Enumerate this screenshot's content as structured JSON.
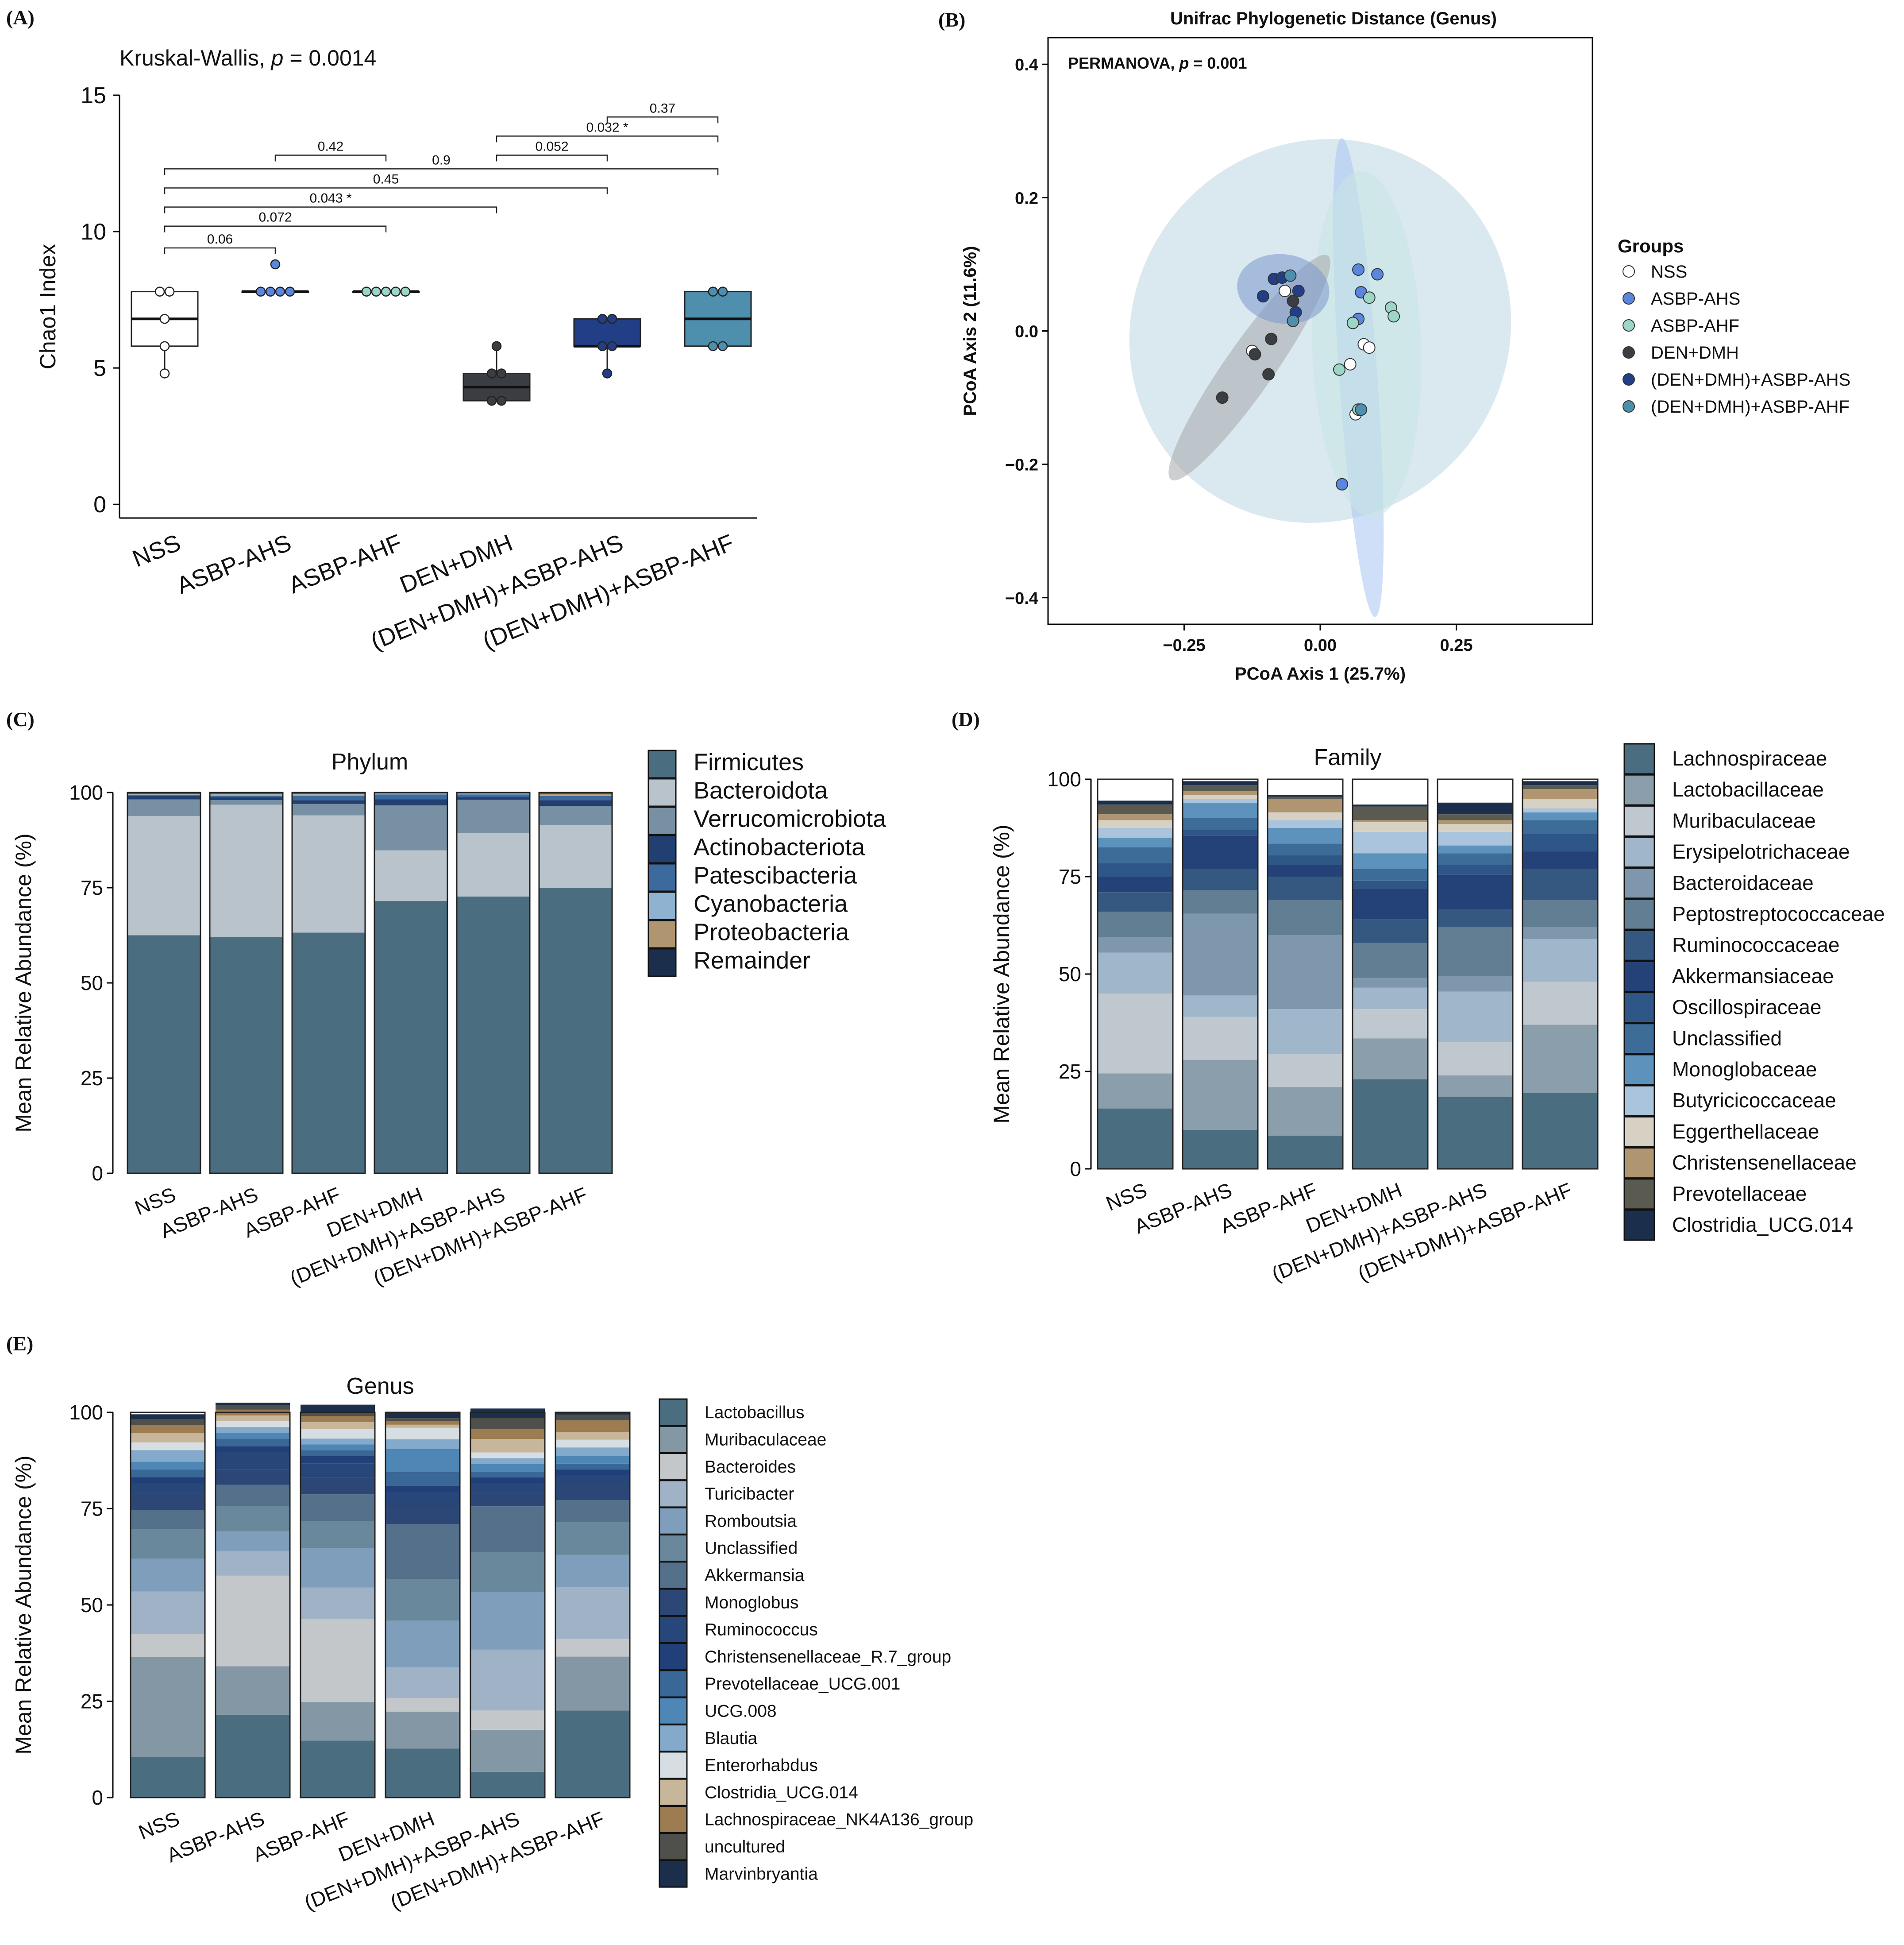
{
  "colors": {
    "Firmicutes": "#4a6d80",
    "Bacteroidota": "#b9c3cb",
    "Verrucomicrobiota": "#7890a3",
    "Actinobacteriota": "#213f70",
    "Patescibacteria": "#3d6a9c",
    "Cyanobacteria": "#8fb2d0",
    "Proteobacteria": "#b09670",
    "Remainder": "#1b2f4c",
    "NSS": "#ffffff",
    "ASBP-AHS": "#5b86dd",
    "ASBP-AHF": "#9cd6c7",
    "DEN+DMH": "#3a3d42",
    "(DEN+DMH)+ASBP-AHS": "#223e86",
    "(DEN+DMH)+ASBP-AHF": "#4f8fae"
  },
  "panels": {
    "A": {
      "letter": "(A)",
      "test_label": "Kruskal-Wallis, ",
      "p_symbol": "p",
      "p_value": " = 0.0014"
    },
    "B": {
      "letter": "(B)"
    },
    "C": {
      "letter": "(C)"
    },
    "D": {
      "letter": "(D)"
    },
    "E": {
      "letter": "(E)"
    }
  },
  "chart_data": [
    {
      "id": "A",
      "type": "box",
      "ylabel": "Chao1 Index",
      "ylim": [
        -0.5,
        15
      ],
      "yticks": [
        0,
        5,
        10,
        15
      ],
      "categories": [
        "NSS",
        "ASBP-AHS",
        "ASBP-AHF",
        "DEN+DMH",
        "(DEN+DMH)+ASBP-AHS",
        "(DEN+DMH)+ASBP-AHF"
      ],
      "boxes": [
        {
          "group": "NSS",
          "q1": 5.8,
          "median": 6.8,
          "q3": 7.8,
          "whisker_low": 4.8,
          "whisker_high": 7.8,
          "points": [
            4.8,
            5.8,
            6.8,
            7.8,
            7.8
          ]
        },
        {
          "group": "ASBP-AHS",
          "q1": 7.8,
          "median": 7.8,
          "q3": 7.8,
          "whisker_low": 7.8,
          "whisker_high": 7.8,
          "points": [
            7.8,
            7.8,
            7.8,
            7.8,
            8.8
          ]
        },
        {
          "group": "ASBP-AHF",
          "q1": 7.8,
          "median": 7.8,
          "q3": 7.8,
          "whisker_low": 7.8,
          "whisker_high": 7.8,
          "points": [
            7.8,
            7.8,
            7.8,
            7.8,
            7.8
          ]
        },
        {
          "group": "DEN+DMH",
          "q1": 3.8,
          "median": 4.3,
          "q3": 4.8,
          "whisker_low": 3.8,
          "whisker_high": 5.8,
          "points": [
            3.8,
            3.8,
            4.8,
            4.8,
            5.8
          ]
        },
        {
          "group": "(DEN+DMH)+ASBP-AHS",
          "q1": 5.8,
          "median": 5.8,
          "q3": 6.8,
          "whisker_low": 4.8,
          "whisker_high": 6.8,
          "points": [
            4.8,
            5.8,
            5.8,
            6.8,
            6.8
          ]
        },
        {
          "group": "(DEN+DMH)+ASBP-AHF",
          "q1": 5.8,
          "median": 6.8,
          "q3": 7.8,
          "whisker_low": 5.8,
          "whisker_high": 7.8,
          "points": [
            5.8,
            5.8,
            7.8,
            7.8
          ]
        }
      ],
      "comparisons": [
        {
          "from": 0,
          "to": 1,
          "label": "0.06",
          "y": 9.4
        },
        {
          "from": 0,
          "to": 2,
          "label": "0.072",
          "y": 10.2
        },
        {
          "from": 0,
          "to": 3,
          "label": "0.043 *",
          "y": 10.9
        },
        {
          "from": 0,
          "to": 4,
          "label": "0.45",
          "y": 11.6
        },
        {
          "from": 0,
          "to": 5,
          "label": "0.9",
          "y": 12.3
        },
        {
          "from": 1,
          "to": 2,
          "label": "0.42",
          "y": 12.8
        },
        {
          "from": 3,
          "to": 4,
          "label": "0.052",
          "y": 12.8
        },
        {
          "from": 3,
          "to": 5,
          "label": "0.032 *",
          "y": 13.5
        },
        {
          "from": 4,
          "to": 5,
          "label": "0.37",
          "y": 14.2
        }
      ]
    },
    {
      "id": "B",
      "type": "scatter",
      "title": "Unifrac Phylogenetic Distance (Genus)",
      "annotation": "PERMANOVA, ",
      "annotation_p": "p",
      "annotation_value": " = 0.001",
      "xlabel": "PCoA Axis 1 (25.7%)",
      "ylabel": "PCoA Axis 2 (11.6%)",
      "xlim": [
        -0.5,
        0.5
      ],
      "ylim": [
        -0.44,
        0.44
      ],
      "xticks": [
        -0.25,
        0.0,
        0.25
      ],
      "xtick_labels": [
        "−0.25",
        "0.00",
        "0.25"
      ],
      "yticks": [
        -0.4,
        -0.2,
        0.0,
        0.2,
        0.4
      ],
      "ytick_labels": [
        "−0.4",
        "−0.2",
        "0.0",
        "0.2",
        "0.4"
      ],
      "legend_title": "Groups",
      "groups": [
        "NSS",
        "ASBP-AHS",
        "ASBP-AHF",
        "DEN+DMH",
        "(DEN+DMH)+ASBP-AHS",
        "(DEN+DMH)+ASBP-AHF"
      ],
      "points": [
        {
          "group": "NSS",
          "x": -0.065,
          "y": 0.06
        },
        {
          "group": "NSS",
          "x": -0.125,
          "y": -0.03
        },
        {
          "group": "NSS",
          "x": 0.08,
          "y": -0.02
        },
        {
          "group": "NSS",
          "x": 0.09,
          "y": -0.025
        },
        {
          "group": "NSS",
          "x": 0.055,
          "y": -0.05
        },
        {
          "group": "NSS",
          "x": 0.065,
          "y": -0.125
        },
        {
          "group": "ASBP-AHS",
          "x": 0.07,
          "y": 0.092
        },
        {
          "group": "ASBP-AHS",
          "x": 0.105,
          "y": 0.085
        },
        {
          "group": "ASBP-AHS",
          "x": 0.075,
          "y": 0.058
        },
        {
          "group": "ASBP-AHS",
          "x": 0.07,
          "y": 0.018
        },
        {
          "group": "ASBP-AHS",
          "x": 0.04,
          "y": -0.23
        },
        {
          "group": "ASBP-AHF",
          "x": 0.09,
          "y": 0.05
        },
        {
          "group": "ASBP-AHF",
          "x": 0.13,
          "y": 0.035
        },
        {
          "group": "ASBP-AHF",
          "x": 0.135,
          "y": 0.022
        },
        {
          "group": "ASBP-AHF",
          "x": 0.06,
          "y": 0.012
        },
        {
          "group": "ASBP-AHF",
          "x": 0.035,
          "y": -0.058
        },
        {
          "group": "ASBP-AHF",
          "x": 0.07,
          "y": -0.118
        },
        {
          "group": "DEN+DMH",
          "x": -0.05,
          "y": 0.045
        },
        {
          "group": "DEN+DMH",
          "x": -0.09,
          "y": -0.012
        },
        {
          "group": "DEN+DMH",
          "x": -0.12,
          "y": -0.035
        },
        {
          "group": "DEN+DMH",
          "x": -0.095,
          "y": -0.065
        },
        {
          "group": "DEN+DMH",
          "x": -0.18,
          "y": -0.1
        },
        {
          "group": "(DEN+DMH)+ASBP-AHS",
          "x": -0.085,
          "y": 0.078
        },
        {
          "group": "(DEN+DMH)+ASBP-AHS",
          "x": -0.07,
          "y": 0.08
        },
        {
          "group": "(DEN+DMH)+ASBP-AHS",
          "x": -0.105,
          "y": 0.052
        },
        {
          "group": "(DEN+DMH)+ASBP-AHS",
          "x": -0.04,
          "y": 0.06
        },
        {
          "group": "(DEN+DMH)+ASBP-AHS",
          "x": -0.045,
          "y": 0.028
        },
        {
          "group": "(DEN+DMH)+ASBP-AHF",
          "x": -0.055,
          "y": 0.083
        },
        {
          "group": "(DEN+DMH)+ASBP-AHF",
          "x": -0.05,
          "y": 0.015
        },
        {
          "group": "(DEN+DMH)+ASBP-AHF",
          "x": 0.075,
          "y": -0.118
        }
      ],
      "ellipses": [
        {
          "group": "NSS",
          "cx": 0.0,
          "cy": 0.0,
          "rx": 0.36,
          "ry": 0.28,
          "angle_deg": -48
        },
        {
          "group": "ASBP-AHS",
          "cx": 0.07,
          "cy": -0.07,
          "rx": 0.035,
          "ry": 0.36,
          "angle_deg": -4
        },
        {
          "group": "ASBP-AHF",
          "cx": 0.085,
          "cy": -0.02,
          "rx": 0.1,
          "ry": 0.26,
          "angle_deg": -2
        },
        {
          "group": "DEN+DMH",
          "cx": -0.13,
          "cy": -0.055,
          "rx": 0.045,
          "ry": 0.205,
          "angle_deg": 35
        },
        {
          "group": "(DEN+DMH)+ASBP-AHS",
          "cx": -0.068,
          "cy": 0.063,
          "rx": 0.085,
          "ry": 0.052,
          "angle_deg": 8
        }
      ]
    },
    {
      "id": "C",
      "type": "stacked_bar",
      "title": "Phylum",
      "ylabel": "Mean Relative Abundance (%)",
      "ylim": [
        0,
        100
      ],
      "yticks": [
        0,
        25,
        50,
        75,
        100
      ],
      "categories": [
        "NSS",
        "ASBP-AHS",
        "ASBP-AHF",
        "DEN+DMH",
        "(DEN+DMH)+ASBP-AHS",
        "(DEN+DMH)+ASBP-AHF"
      ],
      "series": [
        {
          "name": "Firmicutes",
          "values": [
            62.5,
            62,
            63.2,
            71.5,
            72.7,
            75
          ]
        },
        {
          "name": "Bacteroidota",
          "values": [
            31.3,
            34.8,
            30.8,
            13.3,
            16.6,
            16.4
          ]
        },
        {
          "name": "Verrucomicrobiota",
          "values": [
            4.4,
            1.2,
            3,
            11.8,
            8.8,
            5.1
          ]
        },
        {
          "name": "Actinobacteriota",
          "values": [
            1,
            0.8,
            1,
            1.6,
            0.7,
            1.5
          ]
        },
        {
          "name": "Patescibacteria",
          "values": [
            0.2,
            0.4,
            1.2,
            1.3,
            0.7,
            1.1
          ]
        },
        {
          "name": "Cyanobacteria",
          "values": [
            0.1,
            0.3,
            0.3,
            0.1,
            0.1,
            0.3
          ]
        },
        {
          "name": "Proteobacteria",
          "values": [
            0.2,
            0.2,
            0.2,
            0.2,
            0.2,
            0.3
          ]
        },
        {
          "name": "Remainder",
          "values": [
            0.3,
            0.3,
            0.3,
            0.2,
            0.2,
            0.3
          ]
        }
      ]
    },
    {
      "id": "D",
      "type": "stacked_bar",
      "title": "Family",
      "ylabel": "Mean Relative Abundance (%)",
      "ylim": [
        0,
        100
      ],
      "yticks": [
        0,
        25,
        50,
        75,
        100
      ],
      "categories": [
        "NSS",
        "ASBP-AHS",
        "ASBP-AHF",
        "DEN+DMH",
        "(DEN+DMH)+ASBP-AHS",
        "(DEN+DMH)+ASBP-AHF"
      ],
      "series": [
        {
          "name": "Lachnospiraceae",
          "values": [
            15.5,
            10,
            8.5,
            23,
            18.5,
            19.5
          ]
        },
        {
          "name": "Lactobacillaceae",
          "values": [
            9,
            18,
            12.5,
            10.5,
            5.5,
            17.5
          ]
        },
        {
          "name": "Muribaculaceae",
          "values": [
            20.5,
            11,
            8.5,
            7.5,
            8.5,
            11
          ]
        },
        {
          "name": "Erysipelotrichaceae",
          "values": [
            10.5,
            5.5,
            11.5,
            5.5,
            13,
            11
          ]
        },
        {
          "name": "Bacteroidaceae",
          "values": [
            4,
            21,
            19,
            2.5,
            4,
            3
          ]
        },
        {
          "name": "Peptostreptococcaceae",
          "values": [
            6.5,
            6,
            9,
            9,
            12.5,
            7
          ]
        },
        {
          "name": "Ruminococcaceae",
          "values": [
            5,
            5.5,
            6,
            6,
            4.5,
            8
          ]
        },
        {
          "name": "Akkermansiaceae",
          "values": [
            4,
            8.5,
            3,
            8,
            9,
            4.5
          ]
        },
        {
          "name": "Oscillospiraceae",
          "values": [
            3.5,
            1.5,
            2.5,
            2,
            2.5,
            4.5
          ]
        },
        {
          "name": "Unclassified",
          "values": [
            4,
            3,
            3,
            3,
            3,
            3.5
          ]
        },
        {
          "name": "Monoglobaceae",
          "values": [
            2.5,
            4,
            4,
            4,
            2,
            2
          ]
        },
        {
          "name": "Butyricicoccaceae",
          "values": [
            2.5,
            1,
            2,
            5.5,
            3.5,
            1
          ]
        },
        {
          "name": "Eggerthellaceae",
          "values": [
            2,
            1,
            2,
            2.5,
            2,
            2.5
          ]
        },
        {
          "name": "Christensenellaceae",
          "values": [
            1.5,
            1,
            3.5,
            0.5,
            1,
            2.5
          ]
        },
        {
          "name": "Prevotellaceae",
          "values": [
            2.5,
            1.5,
            0.5,
            3.5,
            1.5,
            1
          ]
        },
        {
          "name": "Clostridia_UCG.014",
          "values": [
            1,
            1,
            0.5,
            0.5,
            3,
            1
          ]
        }
      ]
    },
    {
      "id": "E",
      "type": "stacked_bar",
      "title": "Genus",
      "ylabel": "Mean Relative Abundance (%)",
      "ylim": [
        0,
        100
      ],
      "yticks": [
        0,
        25,
        50,
        75,
        100
      ],
      "categories": [
        "NSS",
        "ASBP-AHS",
        "ASBP-AHF",
        "DEN+DMH",
        "(DEN+DMH)+ASBP-AHS",
        "(DEN+DMH)+ASBP-AHF"
      ],
      "series": [
        {
          "name": "Lactobacillus",
          "values": [
            10.5,
            21.5,
            14.8,
            12.7,
            6.7,
            22.6
          ]
        },
        {
          "name": "Muribaculaceae",
          "values": [
            26,
            12.6,
            10,
            9.6,
            10.9,
            14
          ]
        },
        {
          "name": "Bacteroides",
          "values": [
            6,
            23.5,
            21.6,
            3.5,
            5,
            4.6
          ]
        },
        {
          "name": "Turicibacter",
          "values": [
            11,
            6.3,
            8.1,
            8,
            15.8,
            13.4
          ]
        },
        {
          "name": "Romboutsia",
          "values": [
            8.5,
            5.2,
            10.3,
            12.1,
            15,
            8.4
          ]
        },
        {
          "name": "Unclassified",
          "values": [
            7.7,
            6.6,
            7,
            10.8,
            10.3,
            8.5
          ]
        },
        {
          "name": "Akkermansia",
          "values": [
            5,
            5.5,
            6.9,
            14.2,
            11.9,
            5.7
          ]
        },
        {
          "name": "Monoglobus",
          "values": [
            4.5,
            4,
            4.5,
            4.8,
            3.6,
            4.5
          ]
        },
        {
          "name": "Ruminococcus",
          "values": [
            2.5,
            4.5,
            3.5,
            3.5,
            2.5,
            2
          ]
        },
        {
          "name": "Christensenellaceae_R.7_group",
          "values": [
            1.5,
            1.5,
            2,
            1.8,
            1.4,
            1.5
          ]
        },
        {
          "name": "Prevotellaceae_UCG.001",
          "values": [
            2,
            2,
            1.5,
            3.5,
            1.5,
            1.5
          ]
        },
        {
          "name": "UCG.008",
          "values": [
            2,
            1.5,
            1.5,
            6,
            2,
            2
          ]
        },
        {
          "name": "Blautia",
          "values": [
            3,
            1.5,
            1.5,
            2.5,
            1.5,
            2.2
          ]
        },
        {
          "name": "Enterorhabdus",
          "values": [
            2,
            1.5,
            2.5,
            3,
            1.5,
            2
          ]
        },
        {
          "name": "Clostridia_UCG.014",
          "values": [
            2.5,
            1.5,
            1.8,
            0.8,
            3.5,
            2
          ]
        },
        {
          "name": "Lachnospiraceae_NK4A136_group",
          "values": [
            2,
            1.5,
            1.5,
            1,
            2.5,
            3
          ]
        },
        {
          "name": "uncultured",
          "values": [
            1.5,
            1.2,
            1,
            0.7,
            3,
            1.5
          ]
        },
        {
          "name": "Marvinbryantia",
          "values": [
            1.3,
            0.6,
            2,
            1.5,
            2.4,
            0.5
          ]
        }
      ]
    }
  ],
  "palettes": {
    "D": [
      "#4a6d80",
      "#8a9eab",
      "#c0c8cf",
      "#a0b7cb",
      "#7e97ac",
      "#627e93",
      "#34587f",
      "#244277",
      "#2e5788",
      "#3e6c99",
      "#5d92bd",
      "#a9c4dc",
      "#d7d1c4",
      "#b09670",
      "#5a5a50",
      "#1b2f4c"
    ],
    "E": [
      "#4a6d80",
      "#8497a5",
      "#c4c7ca",
      "#a0b3c6",
      "#7f9ebb",
      "#6a889c",
      "#55708a",
      "#2c4775",
      "#27467a",
      "#21407a",
      "#3a6896",
      "#4e87b6",
      "#84aacb",
      "#d6dee3",
      "#c7b69a",
      "#9c7c50",
      "#4f4f4b",
      "#1b2f4c"
    ]
  }
}
